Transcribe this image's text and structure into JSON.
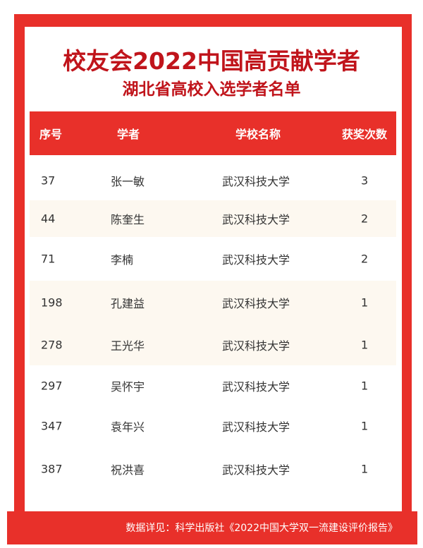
{
  "title": "校友会2022中国高贡献学者",
  "subtitle": "湖北省高校入选学者名单",
  "columns": [
    "序号",
    "学者",
    "学校名称",
    "获奖次数"
  ],
  "rows": [
    [
      "37",
      "张一敏",
      "武汉科技大学",
      "3"
    ],
    [
      "44",
      "陈奎生",
      "武汉科技大学",
      "2"
    ],
    [
      "71",
      "李楠",
      "武汉科技大学",
      "2"
    ],
    [
      "198",
      "孔建益",
      "武汉科技大学",
      "1"
    ],
    [
      "278",
      "王光华",
      "武汉科技大学",
      "1"
    ],
    [
      "297",
      "吴怀宇",
      "武汉科技大学",
      "1"
    ],
    [
      "347",
      "袁年兴",
      "武汉科技大学",
      "1"
    ],
    [
      "387",
      "祝洪喜",
      "武汉科技大学",
      "1"
    ]
  ],
  "footer": "数据详见：科学出版社《2022中国大学双一流建设评价报告》",
  "colors": {
    "accent": "#e8302a",
    "title": "#c0141b"
  }
}
